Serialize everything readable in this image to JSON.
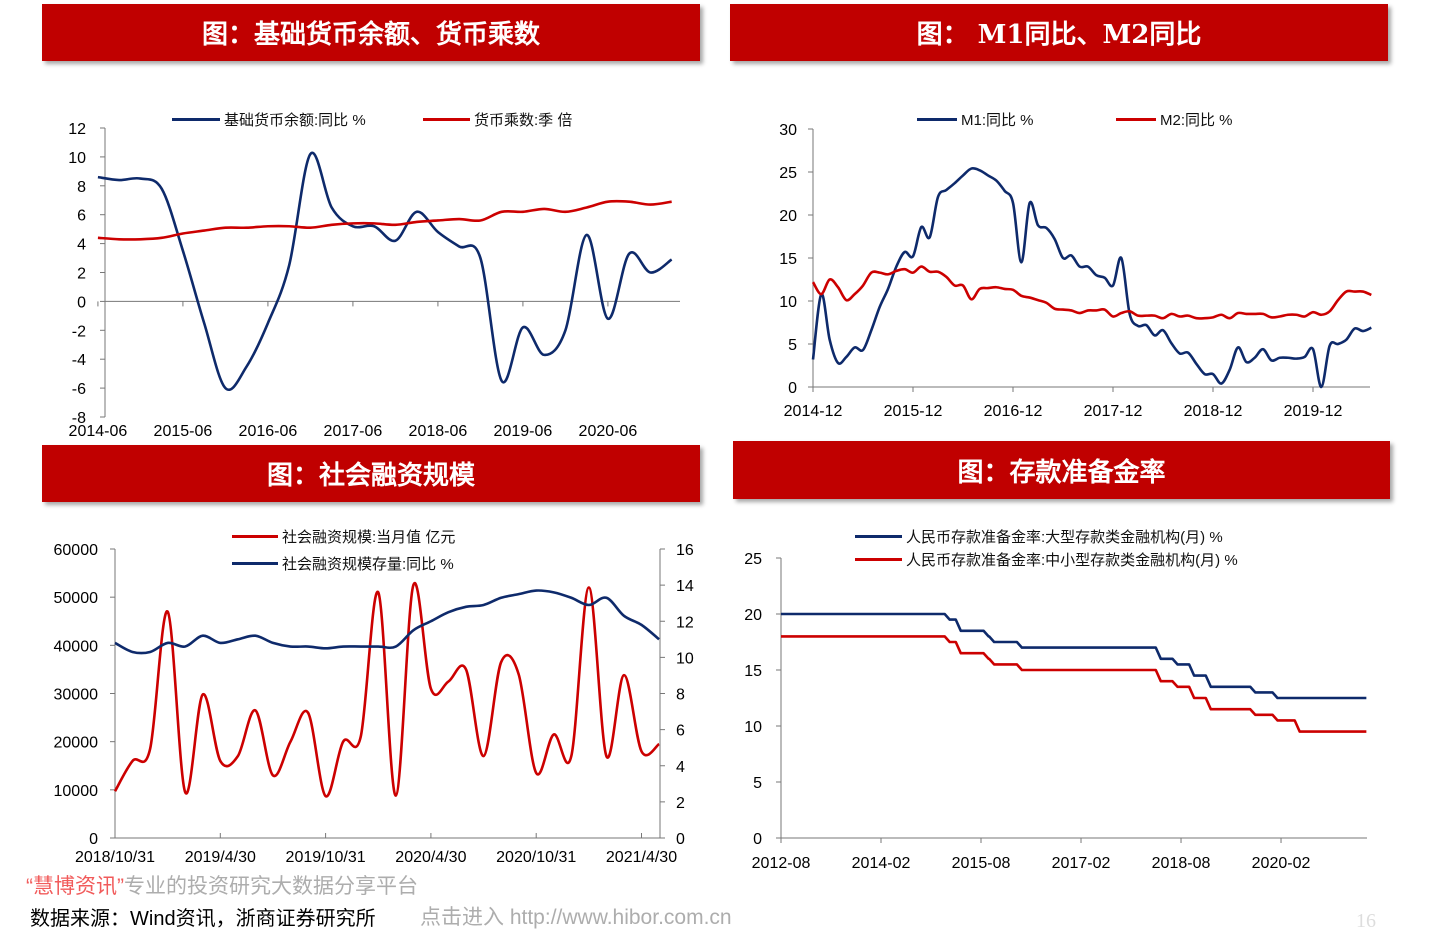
{
  "colors": {
    "header": "#C00000",
    "blue": "#0E2A6B",
    "red": "#CC0000"
  },
  "chart_data": [
    {
      "type": "line",
      "title": "图：基础货币余额、货币乘数",
      "ylim": [
        -8,
        12
      ],
      "yticks": [
        -8,
        -6,
        -4,
        -2,
        0,
        2,
        4,
        6,
        8,
        10,
        12
      ],
      "xticks": [
        "2014-06",
        "2015-06",
        "2016-06",
        "2017-06",
        "2018-06",
        "2019-06",
        "2020-06"
      ],
      "legend": "top",
      "x": [
        "2014-06",
        "2014-09",
        "2014-12",
        "2015-03",
        "2015-06",
        "2015-09",
        "2015-12",
        "2016-03",
        "2016-06",
        "2016-09",
        "2016-12",
        "2017-03",
        "2017-06",
        "2017-09",
        "2017-12",
        "2018-03",
        "2018-06",
        "2018-09",
        "2018-12",
        "2019-03",
        "2019-06",
        "2019-09",
        "2019-12",
        "2020-03",
        "2020-06",
        "2020-09",
        "2020-12",
        "2021-03"
      ],
      "series": [
        {
          "name": "基础货币余额:同比 %",
          "color": "#0E2A6B",
          "values": [
            8.6,
            8.4,
            8.5,
            7.8,
            3.5,
            -1.5,
            -6.0,
            -4.5,
            -1.5,
            2.5,
            10.2,
            6.5,
            5.2,
            5.2,
            4.2,
            6.2,
            4.8,
            3.8,
            3.0,
            -5.5,
            -1.8,
            -3.7,
            -2.0,
            4.6,
            -1.2,
            3.3,
            2.0,
            2.9
          ]
        },
        {
          "name": "货币乘数:季 倍",
          "color": "#CC0000",
          "values": [
            4.4,
            4.3,
            4.3,
            4.4,
            4.7,
            4.9,
            5.1,
            5.1,
            5.2,
            5.2,
            5.1,
            5.3,
            5.4,
            5.4,
            5.3,
            5.5,
            5.6,
            5.7,
            5.6,
            6.2,
            6.2,
            6.4,
            6.2,
            6.5,
            6.9,
            6.9,
            6.7,
            6.9
          ]
        }
      ]
    },
    {
      "type": "line",
      "title": "图： M1同比、M2同比",
      "ylim": [
        0,
        30
      ],
      "yticks": [
        0,
        5,
        10,
        15,
        20,
        25,
        30
      ],
      "xticks": [
        "2014-12",
        "2015-12",
        "2016-12",
        "2017-12",
        "2018-12",
        "2019-12"
      ],
      "legend": "top",
      "x": [
        "2014-12",
        "2015-01",
        "2015-02",
        "2015-03",
        "2015-04",
        "2015-05",
        "2015-06",
        "2015-07",
        "2015-08",
        "2015-09",
        "2015-10",
        "2015-11",
        "2015-12",
        "2016-01",
        "2016-02",
        "2016-03",
        "2016-04",
        "2016-05",
        "2016-06",
        "2016-07",
        "2016-08",
        "2016-09",
        "2016-10",
        "2016-11",
        "2016-12",
        "2017-01",
        "2017-02",
        "2017-03",
        "2017-04",
        "2017-05",
        "2017-06",
        "2017-07",
        "2017-08",
        "2017-09",
        "2017-10",
        "2017-11",
        "2017-12",
        "2018-01",
        "2018-02",
        "2018-03",
        "2018-04",
        "2018-05",
        "2018-06",
        "2018-07",
        "2018-08",
        "2018-09",
        "2018-10",
        "2018-11",
        "2018-12",
        "2019-01",
        "2019-02",
        "2019-03",
        "2019-04",
        "2019-05",
        "2019-06",
        "2019-07",
        "2019-08",
        "2019-09",
        "2019-10",
        "2019-11",
        "2019-12",
        "2020-01",
        "2020-02",
        "2020-03",
        "2020-04",
        "2020-05",
        "2020-06",
        "2020-07"
      ],
      "series": [
        {
          "name": "M1:同比 %",
          "color": "#0E2A6B",
          "values": [
            3.2,
            10.8,
            5.5,
            2.8,
            3.5,
            4.6,
            4.3,
            6.6,
            9.3,
            11.4,
            14.0,
            15.7,
            15.2,
            18.6,
            17.4,
            22.1,
            22.9,
            23.7,
            24.6,
            25.4,
            25.2,
            24.6,
            24.0,
            22.8,
            21.4,
            14.5,
            21.4,
            18.8,
            18.5,
            17.2,
            15.0,
            15.3,
            14.0,
            14.0,
            13.0,
            12.7,
            11.8,
            15.0,
            8.5,
            7.1,
            7.2,
            6.0,
            6.6,
            5.1,
            3.9,
            4.0,
            2.7,
            1.5,
            1.5,
            0.4,
            2.0,
            4.6,
            2.9,
            3.4,
            4.4,
            3.1,
            3.4,
            3.4,
            3.3,
            3.5,
            4.4,
            0.0,
            4.8,
            5.0,
            5.5,
            6.8,
            6.5,
            6.9
          ]
        },
        {
          "name": "M2:同比 %",
          "color": "#CC0000",
          "values": [
            12.2,
            10.8,
            12.5,
            11.6,
            10.1,
            10.8,
            11.8,
            13.3,
            13.3,
            13.1,
            13.5,
            13.7,
            13.3,
            14.0,
            13.4,
            13.4,
            12.8,
            11.8,
            11.8,
            10.2,
            11.4,
            11.5,
            11.6,
            11.4,
            11.3,
            10.6,
            10.4,
            10.1,
            9.8,
            9.1,
            9.0,
            8.9,
            8.6,
            8.9,
            8.9,
            9.0,
            8.2,
            8.6,
            8.8,
            8.3,
            8.3,
            8.3,
            8.0,
            8.5,
            8.2,
            8.3,
            8.0,
            8.0,
            8.1,
            8.4,
            8.0,
            8.6,
            8.5,
            8.5,
            8.5,
            8.1,
            8.2,
            8.4,
            8.4,
            8.2,
            8.7,
            8.4,
            8.8,
            10.1,
            11.1,
            11.1,
            11.1,
            10.7
          ]
        }
      ]
    },
    {
      "type": "line",
      "title": "图：社会融资规模",
      "ylim": [
        0,
        60000
      ],
      "yticks": [
        0,
        10000,
        20000,
        30000,
        40000,
        50000,
        60000
      ],
      "ylim_right": [
        0,
        16
      ],
      "yticks_right": [
        0,
        2,
        4,
        6,
        8,
        10,
        12,
        14,
        16
      ],
      "xticks": [
        "2018/10/31",
        "2019/4/30",
        "2019/10/31",
        "2020/4/30",
        "2020/10/31",
        "2021/4/30"
      ],
      "legend": "top",
      "x": [
        "2018-10",
        "2018-11",
        "2018-12",
        "2019-01",
        "2019-02",
        "2019-03",
        "2019-04",
        "2019-05",
        "2019-06",
        "2019-07",
        "2019-08",
        "2019-09",
        "2019-10",
        "2019-11",
        "2019-12",
        "2020-01",
        "2020-02",
        "2020-03",
        "2020-04",
        "2020-05",
        "2020-06",
        "2020-07",
        "2020-08",
        "2020-09",
        "2020-10",
        "2020-11",
        "2020-12",
        "2021-01",
        "2021-02",
        "2021-03",
        "2021-04",
        "2021-05"
      ],
      "series": [
        {
          "name": "社会融资规模:当月值 亿元",
          "color": "#CC0000",
          "axis": "left",
          "values": [
            9700,
            16000,
            18500,
            47000,
            9500,
            29800,
            16000,
            17000,
            26500,
            13000,
            20000,
            26000,
            8700,
            20000,
            21000,
            51000,
            8800,
            52500,
            31000,
            32500,
            35000,
            17000,
            36500,
            34000,
            13500,
            21500,
            17000,
            52000,
            17000,
            33800,
            18000,
            19500
          ]
        },
        {
          "name": "社会融资规模存量:同比 %",
          "color": "#0E2A6B",
          "axis": "right",
          "values": [
            10.8,
            10.3,
            10.3,
            10.8,
            10.6,
            11.2,
            10.8,
            11.0,
            11.2,
            10.8,
            10.6,
            10.6,
            10.5,
            10.6,
            10.6,
            10.6,
            10.6,
            11.5,
            12.0,
            12.5,
            12.8,
            12.9,
            13.3,
            13.5,
            13.7,
            13.6,
            13.3,
            12.9,
            13.3,
            12.3,
            11.8,
            11.0
          ]
        }
      ]
    },
    {
      "type": "line",
      "title": "图：存款准备金率",
      "ylim": [
        0,
        25
      ],
      "yticks": [
        0,
        5,
        10,
        15,
        20,
        25
      ],
      "xticks": [
        "2012-08",
        "2014-02",
        "2015-08",
        "2017-02",
        "2018-08",
        "2020-02"
      ],
      "legend": "top",
      "series": [
        {
          "name": "人民币存款准备金率:大型存款类金融机构(月) %",
          "color": "#0E2A6B",
          "x": [
            "2012-08",
            "2015-02",
            "2015-04",
            "2015-09",
            "2015-10",
            "2016-03",
            "2018-04",
            "2018-07",
            "2018-10",
            "2019-01",
            "2019-09",
            "2020-01",
            "2021-05"
          ],
          "values": [
            20,
            19.5,
            18.5,
            18,
            17.5,
            17,
            16,
            15.5,
            14.5,
            13.5,
            13,
            12.5,
            12.5
          ]
        },
        {
          "name": "人民币存款准备金率:中小型存款类金融机构(月) %",
          "color": "#CC0000",
          "x": [
            "2012-08",
            "2015-02",
            "2015-04",
            "2015-09",
            "2015-10",
            "2016-03",
            "2018-04",
            "2018-07",
            "2018-10",
            "2019-01",
            "2019-09",
            "2020-01",
            "2020-05",
            "2021-05"
          ],
          "values": [
            18,
            17.5,
            16.5,
            16,
            15.5,
            15,
            14,
            13.5,
            12.5,
            11.5,
            11,
            10.5,
            9.5,
            9.5
          ]
        }
      ]
    }
  ],
  "footer": {
    "watermark_brand": "“慧博资讯”",
    "watermark_slogan": "专业的投资研究大数据分享平台",
    "source": "数据来源：Wind资讯，浙商证券研究所",
    "watermark_link": "点击进入 http://www.hibor.com.cn",
    "page_number": "16"
  }
}
